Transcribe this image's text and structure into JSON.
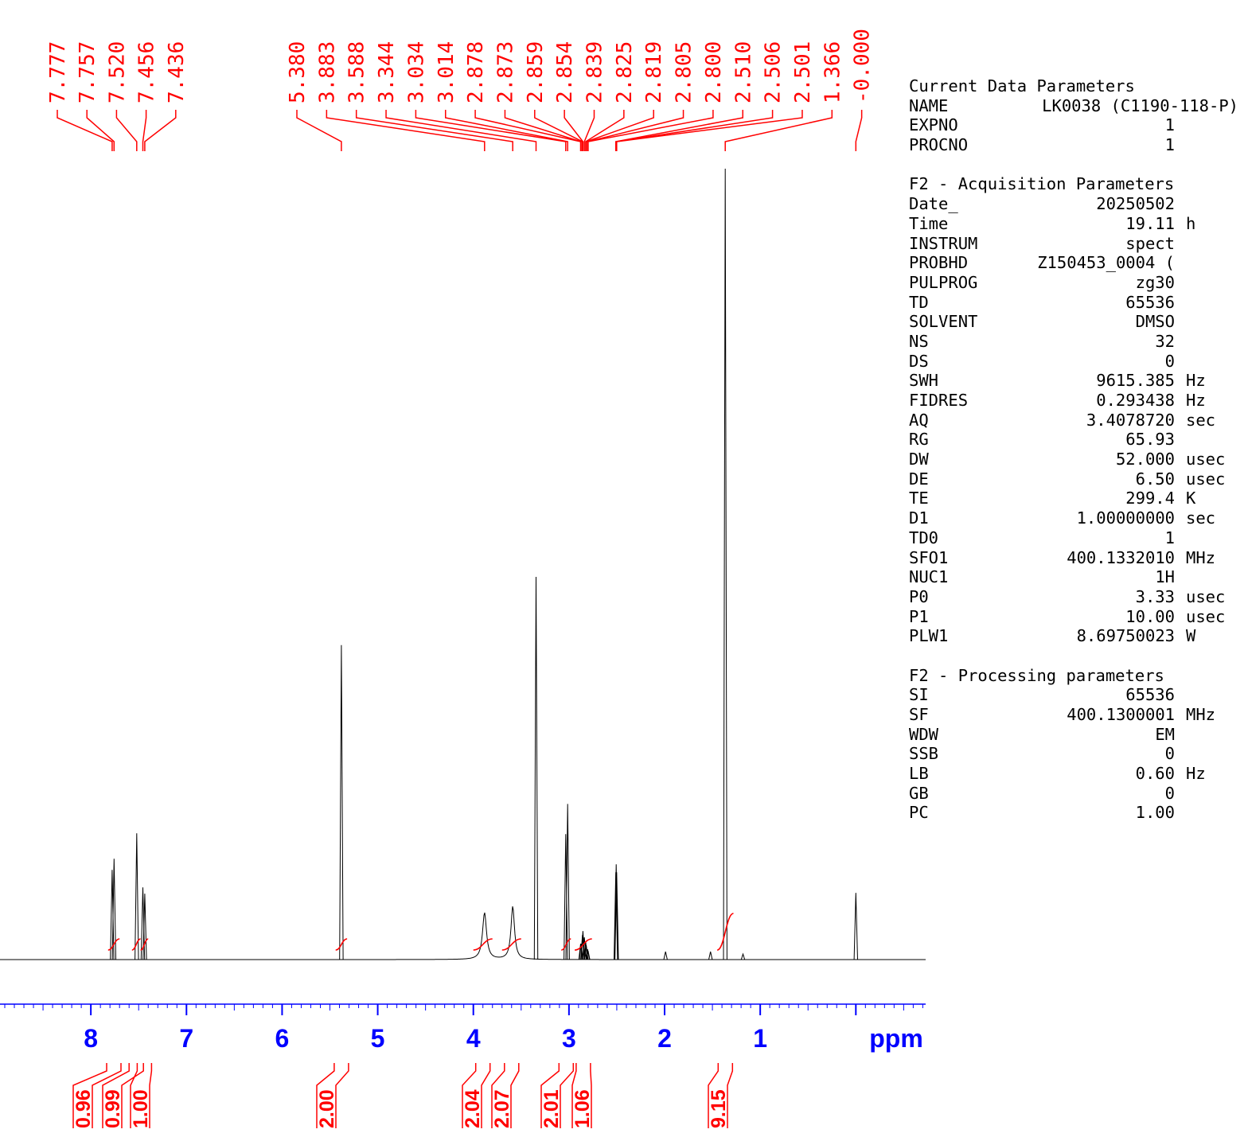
{
  "chart_data": {
    "type": "line",
    "title": "",
    "xlabel": "ppm",
    "ylabel": "",
    "x_reversed": true,
    "xlim": [
      8.95,
      -0.73
    ],
    "ylim": [
      -0.006,
      1.0
    ],
    "x_ticks": [
      "8",
      "7",
      "6",
      "5",
      "4",
      "3",
      "2",
      "1"
    ],
    "x_tick_values": [
      8,
      7,
      6,
      5,
      4,
      3,
      2,
      1
    ],
    "grid": false,
    "legend": "none",
    "series": [
      {
        "peaks": [
          {
            "x": 7.777,
            "h": 0.113,
            "w": 0.005
          },
          {
            "x": 7.757,
            "h": 0.127,
            "w": 0.005
          },
          {
            "x": 7.52,
            "h": 0.159,
            "w": 0.005
          },
          {
            "x": 7.456,
            "h": 0.091,
            "w": 0.005
          },
          {
            "x": 7.436,
            "h": 0.083,
            "w": 0.005
          },
          {
            "x": 5.38,
            "h": 0.396,
            "w": 0.0045
          },
          {
            "x": 3.883,
            "h": 0.059,
            "w": 0.025
          },
          {
            "x": 3.588,
            "h": 0.067,
            "w": 0.022
          },
          {
            "x": 3.344,
            "h": 0.482,
            "w": 0.004
          },
          {
            "x": 3.034,
            "h": 0.158,
            "w": 0.004
          },
          {
            "x": 3.014,
            "h": 0.196,
            "w": 0.004
          },
          {
            "x": 2.878,
            "h": 0.02,
            "w": 0.004
          },
          {
            "x": 2.873,
            "h": 0.02,
            "w": 0.004
          },
          {
            "x": 2.859,
            "h": 0.031,
            "w": 0.004
          },
          {
            "x": 2.854,
            "h": 0.036,
            "w": 0.004
          },
          {
            "x": 2.839,
            "h": 0.028,
            "w": 0.004
          },
          {
            "x": 2.825,
            "h": 0.022,
            "w": 0.004
          },
          {
            "x": 2.819,
            "h": 0.018,
            "w": 0.004
          },
          {
            "x": 2.805,
            "h": 0.013,
            "w": 0.004
          },
          {
            "x": 2.8,
            "h": 0.011,
            "w": 0.004
          },
          {
            "x": 2.51,
            "h": 0.11,
            "w": 0.004
          },
          {
            "x": 2.506,
            "h": 0.12,
            "w": 0.004
          },
          {
            "x": 2.501,
            "h": 0.11,
            "w": 0.004
          },
          {
            "x": 1.366,
            "h": 0.996,
            "w": 0.005
          },
          {
            "x": 1.99,
            "h": 0.01,
            "w": 0.004
          },
          {
            "x": 1.52,
            "h": 0.01,
            "w": 0.004
          },
          {
            "x": 1.18,
            "h": 0.007,
            "w": 0.006
          },
          {
            "x": 0.0,
            "h": 0.084,
            "w": 0.004
          }
        ]
      }
    ],
    "peak_labels": [
      "7.777",
      "7.757",
      "7.520",
      "7.456",
      "7.436",
      "5.380",
      "3.883",
      "3.588",
      "3.344",
      "3.034",
      "3.014",
      "2.878",
      "2.873",
      "2.859",
      "2.854",
      "2.839",
      "2.825",
      "2.819",
      "2.805",
      "2.800",
      "2.510",
      "2.506",
      "2.501",
      "1.366",
      "-0.000"
    ],
    "peak_label_values": [
      7.777,
      7.757,
      7.52,
      7.456,
      7.436,
      5.38,
      3.883,
      3.588,
      3.344,
      3.034,
      3.014,
      2.878,
      2.873,
      2.859,
      2.854,
      2.839,
      2.825,
      2.819,
      2.805,
      2.8,
      2.51,
      2.506,
      2.501,
      1.366,
      0.0
    ],
    "integrals": [
      {
        "label": "0.96",
        "from": 7.82,
        "to": 7.7
      },
      {
        "label": "0.99",
        "from": 7.57,
        "to": 7.48
      },
      {
        "label": "1.00",
        "from": 7.48,
        "to": 7.4
      },
      {
        "label": "2.00",
        "from": 5.44,
        "to": 5.32
      },
      {
        "label": "2.04",
        "from": 4.0,
        "to": 3.8
      },
      {
        "label": "2.07",
        "from": 3.7,
        "to": 3.5
      },
      {
        "label": "2.01",
        "from": 3.08,
        "to": 2.98
      },
      {
        "label": "1.06",
        "from": 2.94,
        "to": 2.76
      },
      {
        "label": "9.15",
        "from": 1.45,
        "to": 1.28
      }
    ],
    "colors": {
      "spectrum": "#000000",
      "annotation": "#ff0000",
      "axis": "#0000ff"
    }
  },
  "parameters": [
    {
      "key": "Current Data Parameters",
      "section": true
    },
    {
      "key": "NAME",
      "value": "LK0038 (C1190-118-P)",
      "unit": ""
    },
    {
      "key": "EXPNO",
      "value": "1",
      "unit": ""
    },
    {
      "key": "PROCNO",
      "value": "1",
      "unit": ""
    },
    {
      "gap": true
    },
    {
      "key": "F2 - Acquisition Parameters",
      "section": true
    },
    {
      "key": "Date_",
      "value": "20250502",
      "unit": ""
    },
    {
      "key": "Time",
      "value": "19.11",
      "unit": "h"
    },
    {
      "key": "INSTRUM",
      "value": "spect",
      "unit": ""
    },
    {
      "key": "PROBHD",
      "value": "Z150453_0004 (",
      "unit": ""
    },
    {
      "key": "PULPROG",
      "value": "zg30",
      "unit": ""
    },
    {
      "key": "TD",
      "value": "65536",
      "unit": ""
    },
    {
      "key": "SOLVENT",
      "value": "DMSO",
      "unit": ""
    },
    {
      "key": "NS",
      "value": "32",
      "unit": ""
    },
    {
      "key": "DS",
      "value": "0",
      "unit": ""
    },
    {
      "key": "SWH",
      "value": "9615.385",
      "unit": "Hz"
    },
    {
      "key": "FIDRES",
      "value": "0.293438",
      "unit": "Hz"
    },
    {
      "key": "AQ",
      "value": "3.4078720",
      "unit": "sec"
    },
    {
      "key": "RG",
      "value": "65.93",
      "unit": ""
    },
    {
      "key": "DW",
      "value": "52.000",
      "unit": "usec"
    },
    {
      "key": "DE",
      "value": "6.50",
      "unit": "usec"
    },
    {
      "key": "TE",
      "value": "299.4",
      "unit": "K"
    },
    {
      "key": "D1",
      "value": "1.00000000",
      "unit": "sec"
    },
    {
      "key": "TD0",
      "value": "1",
      "unit": ""
    },
    {
      "key": "SFO1",
      "value": "400.1332010",
      "unit": "MHz"
    },
    {
      "key": "NUC1",
      "value": "1H",
      "unit": ""
    },
    {
      "key": "P0",
      "value": "3.33",
      "unit": "usec"
    },
    {
      "key": "P1",
      "value": "10.00",
      "unit": "usec"
    },
    {
      "key": "PLW1",
      "value": "8.69750023",
      "unit": "W"
    },
    {
      "gap": true
    },
    {
      "key": "F2 - Processing parameters",
      "section": true
    },
    {
      "key": "SI",
      "value": "65536",
      "unit": ""
    },
    {
      "key": "SF",
      "value": "400.1300001",
      "unit": "MHz"
    },
    {
      "key": "WDW",
      "value": "EM",
      "unit": ""
    },
    {
      "key": "SSB",
      "value": "0",
      "unit": ""
    },
    {
      "key": "LB",
      "value": "0.60",
      "unit": "Hz"
    },
    {
      "key": "GB",
      "value": "0",
      "unit": ""
    },
    {
      "key": "PC",
      "value": "1.00",
      "unit": ""
    }
  ]
}
